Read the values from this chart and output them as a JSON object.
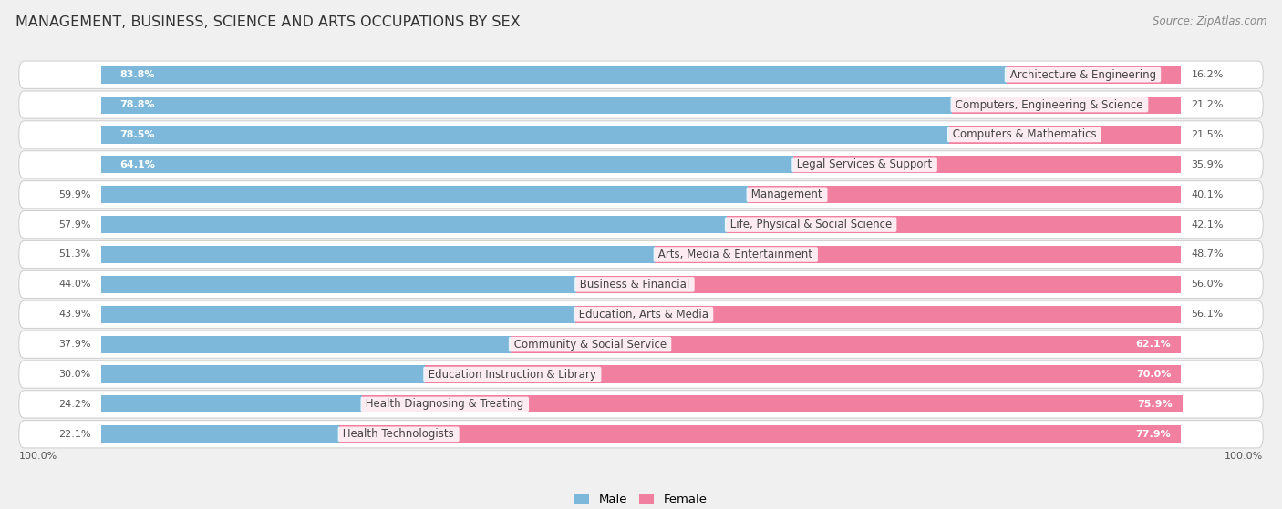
{
  "title": "MANAGEMENT, BUSINESS, SCIENCE AND ARTS OCCUPATIONS BY SEX",
  "source": "Source: ZipAtlas.com",
  "categories": [
    "Architecture & Engineering",
    "Computers, Engineering & Science",
    "Computers & Mathematics",
    "Legal Services & Support",
    "Management",
    "Life, Physical & Social Science",
    "Arts, Media & Entertainment",
    "Business & Financial",
    "Education, Arts & Media",
    "Community & Social Service",
    "Education Instruction & Library",
    "Health Diagnosing & Treating",
    "Health Technologists"
  ],
  "male_pct": [
    83.8,
    78.8,
    78.5,
    64.1,
    59.9,
    57.9,
    51.3,
    44.0,
    43.9,
    37.9,
    30.0,
    24.2,
    22.1
  ],
  "female_pct": [
    16.2,
    21.2,
    21.5,
    35.9,
    40.1,
    42.1,
    48.7,
    56.0,
    56.1,
    62.1,
    70.0,
    75.9,
    77.9
  ],
  "male_color": "#7db8db",
  "female_color": "#f07fa0",
  "bg_color": "#f0f0f0",
  "row_bg_color": "#e8e8e8",
  "row_white_color": "#ffffff",
  "title_fontsize": 11.5,
  "label_fontsize": 8.5,
  "pct_fontsize": 8.0,
  "legend_fontsize": 9.5,
  "source_fontsize": 8.5,
  "male_inside_threshold": 62,
  "female_inside_threshold": 60
}
